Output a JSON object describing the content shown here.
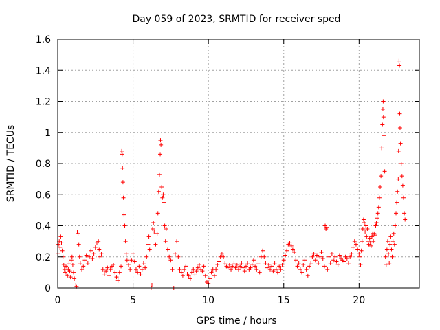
{
  "chart_data": {
    "type": "scatter",
    "title": "Day 059 of 2023, SRMTID for receiver sped",
    "xlabel": "GPS time / hours",
    "ylabel": "SRMTID / TECUs",
    "xlim": [
      0,
      24
    ],
    "ylim": [
      0,
      1.6
    ],
    "xticks": [
      0,
      5,
      10,
      15,
      20
    ],
    "xtick_labels": [
      "0",
      "5",
      "10",
      "15",
      "20"
    ],
    "yticks": [
      0,
      0.2,
      0.4,
      0.6,
      0.8,
      1.0,
      1.2,
      1.4,
      1.6
    ],
    "ytick_labels": [
      "0",
      "0.2",
      "0.4",
      "0.6",
      "0.8",
      "1",
      "1.2",
      "1.4",
      "1.6"
    ],
    "grid": true,
    "marker": "+",
    "color": "#ff0000",
    "series": [
      {
        "name": "SRMTID",
        "points": [
          [
            0.0,
            0.22
          ],
          [
            0.05,
            0.28
          ],
          [
            0.1,
            0.3
          ],
          [
            0.15,
            0.26
          ],
          [
            0.2,
            0.33
          ],
          [
            0.25,
            0.29
          ],
          [
            0.3,
            0.24
          ],
          [
            0.35,
            0.2
          ],
          [
            0.4,
            0.15
          ],
          [
            0.45,
            0.12
          ],
          [
            0.5,
            0.1
          ],
          [
            0.55,
            0.14
          ],
          [
            0.6,
            0.09
          ],
          [
            0.65,
            0.08
          ],
          [
            0.7,
            0.12
          ],
          [
            0.75,
            0.16
          ],
          [
            0.8,
            0.11
          ],
          [
            0.85,
            0.07
          ],
          [
            0.9,
            0.18
          ],
          [
            0.95,
            0.2
          ],
          [
            1.0,
            0.15
          ],
          [
            1.05,
            0.1
          ],
          [
            1.1,
            0.06
          ],
          [
            1.2,
            0.02
          ],
          [
            1.25,
            0.01
          ],
          [
            1.3,
            0.36
          ],
          [
            1.35,
            0.35
          ],
          [
            1.4,
            0.28
          ],
          [
            1.45,
            0.2
          ],
          [
            1.5,
            0.16
          ],
          [
            1.6,
            0.12
          ],
          [
            1.7,
            0.14
          ],
          [
            1.8,
            0.18
          ],
          [
            1.9,
            0.21
          ],
          [
            2.0,
            0.16
          ],
          [
            2.1,
            0.2
          ],
          [
            2.2,
            0.24
          ],
          [
            2.3,
            0.19
          ],
          [
            2.4,
            0.22
          ],
          [
            2.5,
            0.26
          ],
          [
            2.6,
            0.29
          ],
          [
            2.7,
            0.3
          ],
          [
            2.75,
            0.25
          ],
          [
            2.8,
            0.2
          ],
          [
            2.9,
            0.22
          ],
          [
            3.0,
            0.12
          ],
          [
            3.1,
            0.09
          ],
          [
            3.2,
            0.11
          ],
          [
            3.3,
            0.13
          ],
          [
            3.4,
            0.08
          ],
          [
            3.5,
            0.12
          ],
          [
            3.6,
            0.14
          ],
          [
            3.7,
            0.15
          ],
          [
            3.8,
            0.1
          ],
          [
            3.9,
            0.07
          ],
          [
            4.0,
            0.05
          ],
          [
            4.1,
            0.1
          ],
          [
            4.2,
            0.14
          ],
          [
            4.25,
            0.88
          ],
          [
            4.28,
            0.86
          ],
          [
            4.3,
            0.77
          ],
          [
            4.33,
            0.68
          ],
          [
            4.36,
            0.58
          ],
          [
            4.4,
            0.47
          ],
          [
            4.45,
            0.4
          ],
          [
            4.5,
            0.3
          ],
          [
            4.55,
            0.22
          ],
          [
            4.6,
            0.18
          ],
          [
            4.7,
            0.15
          ],
          [
            4.8,
            0.12
          ],
          [
            4.9,
            0.18
          ],
          [
            5.0,
            0.22
          ],
          [
            5.1,
            0.17
          ],
          [
            5.2,
            0.12
          ],
          [
            5.3,
            0.1
          ],
          [
            5.4,
            0.14
          ],
          [
            5.5,
            0.09
          ],
          [
            5.6,
            0.12
          ],
          [
            5.7,
            0.16
          ],
          [
            5.8,
            0.13
          ],
          [
            5.9,
            0.2
          ],
          [
            6.0,
            0.28
          ],
          [
            6.05,
            0.33
          ],
          [
            6.1,
            0.25
          ],
          [
            6.2,
            0.0
          ],
          [
            6.25,
            0.02
          ],
          [
            6.3,
            0.38
          ],
          [
            6.35,
            0.42
          ],
          [
            6.4,
            0.36
          ],
          [
            6.5,
            0.28
          ],
          [
            6.6,
            0.35
          ],
          [
            6.65,
            0.48
          ],
          [
            6.7,
            0.62
          ],
          [
            6.75,
            0.73
          ],
          [
            6.8,
            0.86
          ],
          [
            6.82,
            0.95
          ],
          [
            6.85,
            0.92
          ],
          [
            6.9,
            0.65
          ],
          [
            6.95,
            0.58
          ],
          [
            7.0,
            0.6
          ],
          [
            7.05,
            0.55
          ],
          [
            7.1,
            0.4
          ],
          [
            7.15,
            0.3
          ],
          [
            7.2,
            0.38
          ],
          [
            7.3,
            0.25
          ],
          [
            7.4,
            0.2
          ],
          [
            7.5,
            0.18
          ],
          [
            7.6,
            0.12
          ],
          [
            7.7,
            0.0
          ],
          [
            7.8,
            0.22
          ],
          [
            7.9,
            0.3
          ],
          [
            8.0,
            0.2
          ],
          [
            8.1,
            0.12
          ],
          [
            8.2,
            0.1
          ],
          [
            8.3,
            0.08
          ],
          [
            8.4,
            0.12
          ],
          [
            8.5,
            0.14
          ],
          [
            8.6,
            0.09
          ],
          [
            8.7,
            0.08
          ],
          [
            8.8,
            0.06
          ],
          [
            8.9,
            0.1
          ],
          [
            9.0,
            0.12
          ],
          [
            9.1,
            0.09
          ],
          [
            9.2,
            0.11
          ],
          [
            9.3,
            0.13
          ],
          [
            9.4,
            0.15
          ],
          [
            9.5,
            0.12
          ],
          [
            9.6,
            0.11
          ],
          [
            9.7,
            0.14
          ],
          [
            9.8,
            0.08
          ],
          [
            9.9,
            0.04
          ],
          [
            10.0,
            0.03
          ],
          [
            10.1,
            0.06
          ],
          [
            10.2,
            0.1
          ],
          [
            10.3,
            0.12
          ],
          [
            10.4,
            0.08
          ],
          [
            10.5,
            0.12
          ],
          [
            10.6,
            0.15
          ],
          [
            10.7,
            0.17
          ],
          [
            10.8,
            0.2
          ],
          [
            10.9,
            0.22
          ],
          [
            11.0,
            0.2
          ],
          [
            11.1,
            0.16
          ],
          [
            11.2,
            0.14
          ],
          [
            11.3,
            0.13
          ],
          [
            11.4,
            0.15
          ],
          [
            11.5,
            0.12
          ],
          [
            11.6,
            0.14
          ],
          [
            11.7,
            0.16
          ],
          [
            11.8,
            0.13
          ],
          [
            11.9,
            0.15
          ],
          [
            12.0,
            0.12
          ],
          [
            12.1,
            0.14
          ],
          [
            12.2,
            0.16
          ],
          [
            12.3,
            0.13
          ],
          [
            12.4,
            0.11
          ],
          [
            12.5,
            0.14
          ],
          [
            12.6,
            0.16
          ],
          [
            12.7,
            0.12
          ],
          [
            12.8,
            0.13
          ],
          [
            12.9,
            0.15
          ],
          [
            13.0,
            0.18
          ],
          [
            13.1,
            0.14
          ],
          [
            13.2,
            0.12
          ],
          [
            13.3,
            0.16
          ],
          [
            13.4,
            0.1
          ],
          [
            13.5,
            0.2
          ],
          [
            13.6,
            0.24
          ],
          [
            13.7,
            0.2
          ],
          [
            13.8,
            0.16
          ],
          [
            13.9,
            0.13
          ],
          [
            14.0,
            0.15
          ],
          [
            14.1,
            0.12
          ],
          [
            14.2,
            0.14
          ],
          [
            14.3,
            0.11
          ],
          [
            14.4,
            0.16
          ],
          [
            14.5,
            0.12
          ],
          [
            14.6,
            0.1
          ],
          [
            14.7,
            0.14
          ],
          [
            14.8,
            0.12
          ],
          [
            14.9,
            0.15
          ],
          [
            15.0,
            0.18
          ],
          [
            15.1,
            0.21
          ],
          [
            15.2,
            0.24
          ],
          [
            15.3,
            0.28
          ],
          [
            15.4,
            0.29
          ],
          [
            15.5,
            0.27
          ],
          [
            15.6,
            0.25
          ],
          [
            15.7,
            0.23
          ],
          [
            15.8,
            0.18
          ],
          [
            15.9,
            0.14
          ],
          [
            16.0,
            0.16
          ],
          [
            16.1,
            0.12
          ],
          [
            16.2,
            0.1
          ],
          [
            16.3,
            0.15
          ],
          [
            16.4,
            0.18
          ],
          [
            16.5,
            0.12
          ],
          [
            16.6,
            0.08
          ],
          [
            16.7,
            0.14
          ],
          [
            16.8,
            0.16
          ],
          [
            16.9,
            0.2
          ],
          [
            17.0,
            0.22
          ],
          [
            17.1,
            0.18
          ],
          [
            17.2,
            0.21
          ],
          [
            17.3,
            0.16
          ],
          [
            17.4,
            0.2
          ],
          [
            17.5,
            0.23
          ],
          [
            17.6,
            0.19
          ],
          [
            17.7,
            0.14
          ],
          [
            17.75,
            0.4
          ],
          [
            17.8,
            0.38
          ],
          [
            17.85,
            0.39
          ],
          [
            17.9,
            0.12
          ],
          [
            18.0,
            0.2
          ],
          [
            18.1,
            0.16
          ],
          [
            18.2,
            0.22
          ],
          [
            18.3,
            0.18
          ],
          [
            18.4,
            0.2
          ],
          [
            18.5,
            0.17
          ],
          [
            18.6,
            0.15
          ],
          [
            18.7,
            0.21
          ],
          [
            18.8,
            0.19
          ],
          [
            18.9,
            0.18
          ],
          [
            19.0,
            0.17
          ],
          [
            19.1,
            0.2
          ],
          [
            19.2,
            0.19
          ],
          [
            19.3,
            0.16
          ],
          [
            19.4,
            0.2
          ],
          [
            19.5,
            0.22
          ],
          [
            19.6,
            0.26
          ],
          [
            19.7,
            0.3
          ],
          [
            19.8,
            0.28
          ],
          [
            19.9,
            0.25
          ],
          [
            20.0,
            0.22
          ],
          [
            20.05,
            0.2
          ],
          [
            20.1,
            0.15
          ],
          [
            20.15,
            0.24
          ],
          [
            20.2,
            0.3
          ],
          [
            20.25,
            0.38
          ],
          [
            20.3,
            0.44
          ],
          [
            20.35,
            0.42
          ],
          [
            20.4,
            0.36
          ],
          [
            20.45,
            0.4
          ],
          [
            20.5,
            0.33
          ],
          [
            20.55,
            0.38
          ],
          [
            20.6,
            0.3
          ],
          [
            20.65,
            0.28
          ],
          [
            20.7,
            0.32
          ],
          [
            20.75,
            0.29
          ],
          [
            20.8,
            0.27
          ],
          [
            20.85,
            0.33
          ],
          [
            20.9,
            0.35
          ],
          [
            20.95,
            0.3
          ],
          [
            21.0,
            0.35
          ],
          [
            21.05,
            0.34
          ],
          [
            21.1,
            0.4
          ],
          [
            21.15,
            0.42
          ],
          [
            21.2,
            0.45
          ],
          [
            21.25,
            0.48
          ],
          [
            21.3,
            0.52
          ],
          [
            21.35,
            0.58
          ],
          [
            21.4,
            0.65
          ],
          [
            21.45,
            0.72
          ],
          [
            21.5,
            0.9
          ],
          [
            21.55,
            1.05
          ],
          [
            21.58,
            1.15
          ],
          [
            21.6,
            1.2
          ],
          [
            21.62,
            1.1
          ],
          [
            21.65,
            0.98
          ],
          [
            21.7,
            0.75
          ],
          [
            21.75,
            0.2
          ],
          [
            21.8,
            0.15
          ],
          [
            21.85,
            0.25
          ],
          [
            21.9,
            0.3
          ],
          [
            21.95,
            0.22
          ],
          [
            22.0,
            0.16
          ],
          [
            22.05,
            0.28
          ],
          [
            22.1,
            0.33
          ],
          [
            22.15,
            0.25
          ],
          [
            22.2,
            0.2
          ],
          [
            22.25,
            0.3
          ],
          [
            22.3,
            0.35
          ],
          [
            22.35,
            0.28
          ],
          [
            22.4,
            0.4
          ],
          [
            22.45,
            0.48
          ],
          [
            22.5,
            0.55
          ],
          [
            22.55,
            0.62
          ],
          [
            22.6,
            0.7
          ],
          [
            22.62,
            0.88
          ],
          [
            22.65,
            1.46
          ],
          [
            22.68,
            1.43
          ],
          [
            22.7,
            1.12
          ],
          [
            22.72,
            1.03
          ],
          [
            22.75,
            0.93
          ],
          [
            22.8,
            0.8
          ],
          [
            22.85,
            0.72
          ],
          [
            22.9,
            0.66
          ],
          [
            22.95,
            0.58
          ],
          [
            23.0,
            0.48
          ],
          [
            23.05,
            0.44
          ]
        ]
      }
    ]
  }
}
